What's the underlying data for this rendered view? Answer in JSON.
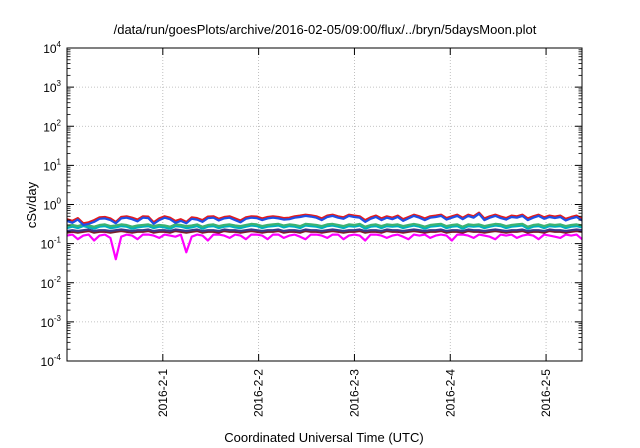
{
  "chart_data": {
    "type": "line",
    "title": "/data/run/goesPlots/archive/2016-02-05/09:00/flux/../bryn/5daysMoon.plot",
    "xlabel": "Coordinated Universal Time (UTC)",
    "ylabel": "cSv/day",
    "y_scale": "log",
    "ylim": [
      0.0001,
      10000
    ],
    "xlim": [
      "2016-01-31T00:00",
      "2016-02-05T09:00"
    ],
    "grid": true,
    "legend": "none",
    "y_ticks": [
      {
        "value": 0.0001,
        "base": "10",
        "exp": "-4"
      },
      {
        "value": 0.001,
        "base": "10",
        "exp": "-3"
      },
      {
        "value": 0.01,
        "base": "10",
        "exp": "-2"
      },
      {
        "value": 0.1,
        "base": "10",
        "exp": "-1"
      },
      {
        "value": 1,
        "base": "10",
        "exp": "0"
      },
      {
        "value": 10,
        "base": "10",
        "exp": "1"
      },
      {
        "value": 100,
        "base": "10",
        "exp": "2"
      },
      {
        "value": 1000,
        "base": "10",
        "exp": "3"
      },
      {
        "value": 10000,
        "base": "10",
        "exp": "4"
      }
    ],
    "x_ticks": [
      {
        "value": "2016-02-01",
        "label": "2016-2-1"
      },
      {
        "value": "2016-02-02",
        "label": "2016-2-2"
      },
      {
        "value": "2016-02-03",
        "label": "2016-2-3"
      },
      {
        "value": "2016-02-04",
        "label": "2016-2-4"
      },
      {
        "value": "2016-02-05",
        "label": "2016-2-5"
      }
    ],
    "series": [
      {
        "color": "#ff00ff",
        "values": [
          0.16,
          0.17,
          0.13,
          0.16,
          0.17,
          0.12,
          0.16,
          0.17,
          0.14,
          0.04,
          0.15,
          0.17,
          0.16,
          0.13,
          0.17,
          0.17,
          0.16,
          0.14,
          0.17,
          0.16,
          0.15,
          0.17,
          0.06,
          0.15,
          0.17,
          0.16,
          0.12,
          0.17,
          0.17,
          0.16,
          0.14,
          0.17,
          0.16,
          0.13,
          0.17,
          0.17,
          0.16,
          0.13,
          0.17,
          0.17,
          0.14,
          0.16,
          0.17,
          0.15,
          0.13,
          0.17,
          0.17,
          0.16,
          0.14,
          0.17,
          0.17,
          0.13,
          0.16,
          0.17,
          0.16,
          0.12,
          0.17,
          0.17,
          0.16,
          0.14,
          0.16,
          0.17,
          0.15,
          0.13,
          0.17,
          0.16,
          0.17,
          0.14,
          0.16,
          0.17,
          0.16,
          0.12,
          0.17,
          0.17,
          0.16,
          0.14,
          0.17,
          0.16,
          0.15,
          0.13,
          0.17,
          0.16,
          0.17,
          0.14,
          0.16,
          0.17,
          0.16,
          0.13,
          0.17,
          0.16,
          0.15,
          0.14,
          0.17,
          0.16,
          0.17,
          0.13
        ]
      },
      {
        "color": "#7a1f2b",
        "values": [
          0.19,
          0.2,
          0.19,
          0.2,
          0.21,
          0.19,
          0.2,
          0.2,
          0.19,
          0.2,
          0.21,
          0.2,
          0.19,
          0.2,
          0.2,
          0.21,
          0.19,
          0.2,
          0.2,
          0.19,
          0.21,
          0.2,
          0.19,
          0.2,
          0.21,
          0.19,
          0.2,
          0.2,
          0.19,
          0.21,
          0.2,
          0.2,
          0.19,
          0.2,
          0.21,
          0.2,
          0.19,
          0.2,
          0.2,
          0.21,
          0.19,
          0.2,
          0.2,
          0.19,
          0.21,
          0.2,
          0.2,
          0.19,
          0.2,
          0.21,
          0.2,
          0.19,
          0.2,
          0.2,
          0.21,
          0.19,
          0.2,
          0.2,
          0.19,
          0.21,
          0.2,
          0.2,
          0.19,
          0.2,
          0.21,
          0.2,
          0.19,
          0.2,
          0.2,
          0.21,
          0.19,
          0.2,
          0.2,
          0.19,
          0.21,
          0.2,
          0.2,
          0.19,
          0.2,
          0.21,
          0.2,
          0.19,
          0.2,
          0.2,
          0.21,
          0.19,
          0.2,
          0.2,
          0.19,
          0.21,
          0.2,
          0.2,
          0.19,
          0.2,
          0.21,
          0.2
        ]
      },
      {
        "color": "#3a3a8a",
        "values": [
          0.21,
          0.22,
          0.21,
          0.22,
          0.23,
          0.21,
          0.22,
          0.22,
          0.21,
          0.22,
          0.23,
          0.22,
          0.21,
          0.22,
          0.22,
          0.23,
          0.21,
          0.22,
          0.22,
          0.21,
          0.23,
          0.22,
          0.21,
          0.22,
          0.23,
          0.21,
          0.22,
          0.22,
          0.21,
          0.23,
          0.22,
          0.22,
          0.21,
          0.22,
          0.23,
          0.22,
          0.21,
          0.22,
          0.22,
          0.23,
          0.21,
          0.22,
          0.22,
          0.21,
          0.23,
          0.22,
          0.22,
          0.21,
          0.22,
          0.23,
          0.22,
          0.21,
          0.22,
          0.22,
          0.23,
          0.21,
          0.22,
          0.22,
          0.21,
          0.23,
          0.22,
          0.22,
          0.21,
          0.22,
          0.23,
          0.22,
          0.21,
          0.22,
          0.22,
          0.23,
          0.21,
          0.22,
          0.22,
          0.21,
          0.23,
          0.22,
          0.22,
          0.21,
          0.22,
          0.23,
          0.22,
          0.21,
          0.22,
          0.22,
          0.23,
          0.21,
          0.22,
          0.22,
          0.21,
          0.23,
          0.22,
          0.22,
          0.21,
          0.22,
          0.23,
          0.22
        ]
      },
      {
        "color": "#00b0c0",
        "values": [
          0.25,
          0.27,
          0.25,
          0.28,
          0.26,
          0.24,
          0.27,
          0.28,
          0.25,
          0.26,
          0.28,
          0.27,
          0.24,
          0.26,
          0.27,
          0.28,
          0.25,
          0.27,
          0.26,
          0.24,
          0.28,
          0.27,
          0.25,
          0.26,
          0.28,
          0.24,
          0.27,
          0.28,
          0.25,
          0.27,
          0.28,
          0.26,
          0.25,
          0.27,
          0.29,
          0.28,
          0.25,
          0.27,
          0.28,
          0.29,
          0.26,
          0.28,
          0.27,
          0.25,
          0.29,
          0.28,
          0.27,
          0.25,
          0.28,
          0.29,
          0.27,
          0.25,
          0.28,
          0.27,
          0.29,
          0.24,
          0.27,
          0.28,
          0.25,
          0.28,
          0.27,
          0.28,
          0.25,
          0.27,
          0.29,
          0.27,
          0.24,
          0.27,
          0.28,
          0.29,
          0.25,
          0.27,
          0.28,
          0.24,
          0.28,
          0.27,
          0.28,
          0.25,
          0.27,
          0.29,
          0.28,
          0.25,
          0.27,
          0.28,
          0.29,
          0.24,
          0.27,
          0.28,
          0.25,
          0.28,
          0.27,
          0.28,
          0.25,
          0.27,
          0.28,
          0.26
        ]
      },
      {
        "color": "#3cb371",
        "values": [
          0.28,
          0.3,
          0.28,
          0.31,
          0.29,
          0.27,
          0.3,
          0.31,
          0.28,
          0.29,
          0.31,
          0.3,
          0.27,
          0.29,
          0.3,
          0.31,
          0.28,
          0.3,
          0.29,
          0.27,
          0.31,
          0.3,
          0.28,
          0.29,
          0.31,
          0.27,
          0.3,
          0.31,
          0.28,
          0.3,
          0.31,
          0.29,
          0.28,
          0.3,
          0.32,
          0.31,
          0.28,
          0.3,
          0.31,
          0.32,
          0.29,
          0.31,
          0.3,
          0.28,
          0.32,
          0.31,
          0.3,
          0.28,
          0.31,
          0.32,
          0.3,
          0.28,
          0.31,
          0.3,
          0.32,
          0.27,
          0.3,
          0.31,
          0.28,
          0.31,
          0.3,
          0.31,
          0.28,
          0.3,
          0.32,
          0.3,
          0.27,
          0.3,
          0.31,
          0.32,
          0.28,
          0.3,
          0.31,
          0.27,
          0.31,
          0.3,
          0.31,
          0.28,
          0.3,
          0.32,
          0.31,
          0.28,
          0.3,
          0.31,
          0.32,
          0.27,
          0.3,
          0.31,
          0.28,
          0.31,
          0.3,
          0.31,
          0.28,
          0.3,
          0.31,
          0.29
        ]
      },
      {
        "color": "#e41a1c",
        "values": [
          0.42,
          0.38,
          0.45,
          0.33,
          0.35,
          0.4,
          0.47,
          0.48,
          0.44,
          0.36,
          0.48,
          0.5,
          0.46,
          0.41,
          0.5,
          0.49,
          0.35,
          0.44,
          0.5,
          0.46,
          0.38,
          0.42,
          0.36,
          0.47,
          0.45,
          0.4,
          0.49,
          0.5,
          0.43,
          0.48,
          0.5,
          0.44,
          0.39,
          0.47,
          0.5,
          0.49,
          0.44,
          0.48,
          0.5,
          0.48,
          0.45,
          0.46,
          0.5,
          0.52,
          0.55,
          0.53,
          0.5,
          0.44,
          0.52,
          0.55,
          0.5,
          0.47,
          0.55,
          0.52,
          0.5,
          0.4,
          0.47,
          0.52,
          0.44,
          0.5,
          0.46,
          0.52,
          0.42,
          0.48,
          0.55,
          0.5,
          0.44,
          0.5,
          0.52,
          0.55,
          0.45,
          0.5,
          0.55,
          0.46,
          0.55,
          0.5,
          0.62,
          0.44,
          0.5,
          0.55,
          0.49,
          0.45,
          0.52,
          0.5,
          0.55,
          0.44,
          0.5,
          0.55,
          0.47,
          0.52,
          0.49,
          0.52,
          0.43,
          0.48,
          0.52,
          0.43
        ]
      },
      {
        "color": "#1f4fe6",
        "values": [
          0.38,
          0.34,
          0.41,
          0.3,
          0.32,
          0.36,
          0.43,
          0.44,
          0.4,
          0.33,
          0.44,
          0.46,
          0.42,
          0.37,
          0.46,
          0.45,
          0.32,
          0.4,
          0.46,
          0.42,
          0.34,
          0.38,
          0.33,
          0.43,
          0.41,
          0.36,
          0.45,
          0.46,
          0.39,
          0.44,
          0.46,
          0.4,
          0.35,
          0.43,
          0.46,
          0.45,
          0.4,
          0.44,
          0.46,
          0.44,
          0.41,
          0.42,
          0.46,
          0.48,
          0.51,
          0.49,
          0.46,
          0.4,
          0.48,
          0.51,
          0.46,
          0.43,
          0.51,
          0.48,
          0.46,
          0.36,
          0.43,
          0.48,
          0.4,
          0.46,
          0.42,
          0.48,
          0.38,
          0.44,
          0.51,
          0.46,
          0.4,
          0.46,
          0.48,
          0.51,
          0.41,
          0.46,
          0.51,
          0.42,
          0.51,
          0.46,
          0.58,
          0.4,
          0.46,
          0.51,
          0.45,
          0.41,
          0.48,
          0.46,
          0.51,
          0.4,
          0.46,
          0.51,
          0.43,
          0.48,
          0.45,
          0.48,
          0.39,
          0.44,
          0.48,
          0.39
        ]
      }
    ]
  }
}
